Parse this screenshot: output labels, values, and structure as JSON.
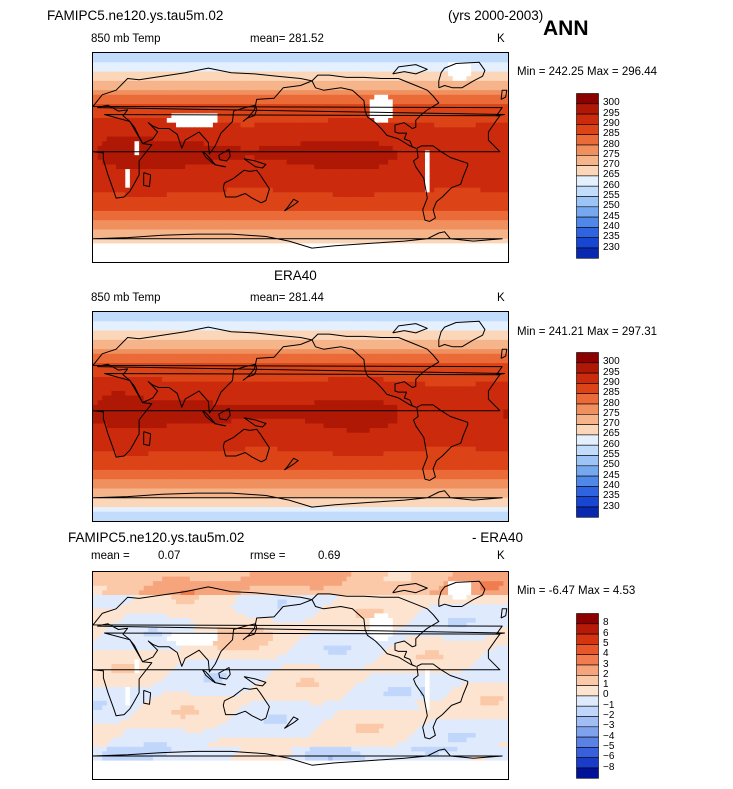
{
  "header": {
    "case_name": "FAMIPC5.ne120.ys.tau5m.02",
    "years": "(yrs 2000-2003)",
    "season": "ANN"
  },
  "colors": {
    "warm": [
      "#8c0000",
      "#b01806",
      "#cc2a0c",
      "#dc4418",
      "#ea6a38",
      "#f0905e",
      "#f6b48a",
      "#fbd6b8",
      "#fff1e4"
    ],
    "cool": [
      "#e4f0fe",
      "#c2dcfb",
      "#9cc4f6",
      "#76a8f0",
      "#5088ea",
      "#2e64e0",
      "#1646d2",
      "#0828b0",
      "#001080"
    ],
    "diff_warm": [
      "#8c0000",
      "#b81a08",
      "#d6340f",
      "#e8562a",
      "#f07c50",
      "#f6a47c",
      "#fbc8a8",
      "#fde4d0"
    ],
    "diff_cool": [
      "#dfeafd",
      "#c0d6fa",
      "#a0bef4",
      "#7ea2ee",
      "#5a82e6",
      "#3860dc",
      "#1a3cc8",
      "#00129a"
    ]
  },
  "chart_data": [
    {
      "type": "heatmap",
      "id": "model",
      "title": "FAMIPC5.ne120.ys.tau5m.02",
      "left_label": "850 mb Temp",
      "center_label": "mean=  281.52",
      "units": "K",
      "min_max": "Min = 242.25 Max = 296.44",
      "mean": 281.52,
      "min": 242.25,
      "max": 296.44,
      "colorbar_levels": [
        300,
        295,
        290,
        285,
        280,
        275,
        270,
        265,
        260,
        255,
        250,
        245,
        240,
        235,
        230
      ],
      "x": "longitude",
      "y": "latitude"
    },
    {
      "type": "heatmap",
      "id": "obs",
      "title": "ERA40",
      "left_label": "850 mb Temp",
      "center_label": "mean=  281.44",
      "units": "K",
      "min_max": "Min = 241.21 Max = 297.31",
      "mean": 281.44,
      "min": 241.21,
      "max": 297.31,
      "colorbar_levels": [
        300,
        295,
        290,
        285,
        280,
        275,
        270,
        265,
        260,
        255,
        250,
        245,
        240,
        235,
        230
      ],
      "x": "longitude",
      "y": "latitude"
    },
    {
      "type": "heatmap",
      "id": "diff",
      "title_left": "FAMIPC5.ne120.ys.tau5m.02",
      "title_right": "- ERA40",
      "mean_label": "mean =",
      "mean_value": "0.07",
      "rmse_label": "rmse =",
      "rmse_value": "0.69",
      "units": "K",
      "min_max": "Min =  -6.47 Max =    4.53",
      "mean": 0.07,
      "rmse": 0.69,
      "min": -6.47,
      "max": 4.53,
      "colorbar_levels": [
        "8",
        "6",
        "5",
        "4",
        "3",
        "2",
        "1",
        "0",
        "−1",
        "−2",
        "−3",
        "−4",
        "−5",
        "−6",
        "−8"
      ],
      "x": "longitude",
      "y": "latitude"
    }
  ]
}
